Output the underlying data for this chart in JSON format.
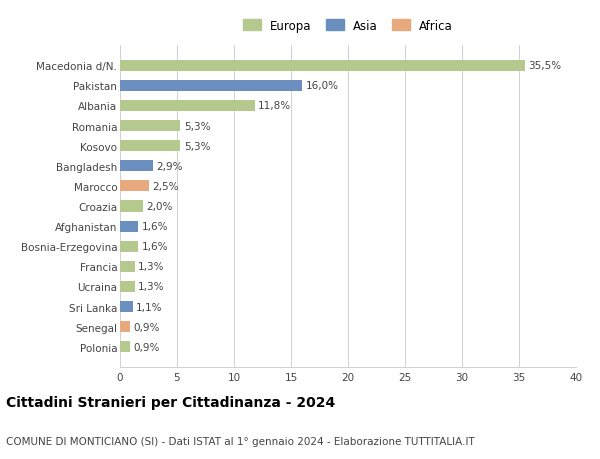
{
  "title": "Cittadini Stranieri per Cittadinanza - 2024",
  "subtitle": "COMUNE DI MONTICIANO (SI) - Dati ISTAT al 1° gennaio 2024 - Elaborazione TUTTITALIA.IT",
  "categories": [
    "Polonia",
    "Senegal",
    "Sri Lanka",
    "Ucraina",
    "Francia",
    "Bosnia-Erzegovina",
    "Afghanistan",
    "Croazia",
    "Marocco",
    "Bangladesh",
    "Kosovo",
    "Romania",
    "Albania",
    "Pakistan",
    "Macedonia d/N."
  ],
  "values": [
    0.9,
    0.9,
    1.1,
    1.3,
    1.3,
    1.6,
    1.6,
    2.0,
    2.5,
    2.9,
    5.3,
    5.3,
    11.8,
    16.0,
    35.5
  ],
  "labels": [
    "0,9%",
    "0,9%",
    "1,1%",
    "1,3%",
    "1,3%",
    "1,6%",
    "1,6%",
    "2,0%",
    "2,5%",
    "2,9%",
    "5,3%",
    "5,3%",
    "11,8%",
    "16,0%",
    "35,5%"
  ],
  "continents": [
    "Europa",
    "Africa",
    "Asia",
    "Europa",
    "Europa",
    "Europa",
    "Asia",
    "Europa",
    "Africa",
    "Asia",
    "Europa",
    "Europa",
    "Europa",
    "Asia",
    "Europa"
  ],
  "colors": {
    "Europa": "#b5c98e",
    "Asia": "#6a8fbf",
    "Africa": "#e8a97e"
  },
  "xlim": [
    0,
    40
  ],
  "xticks": [
    0,
    5,
    10,
    15,
    20,
    25,
    30,
    35,
    40
  ],
  "background_color": "#ffffff",
  "grid_color": "#d0d0d0",
  "bar_height": 0.55,
  "title_fontsize": 10,
  "subtitle_fontsize": 7.5,
  "label_fontsize": 7.5,
  "tick_fontsize": 7.5,
  "legend_fontsize": 8.5
}
